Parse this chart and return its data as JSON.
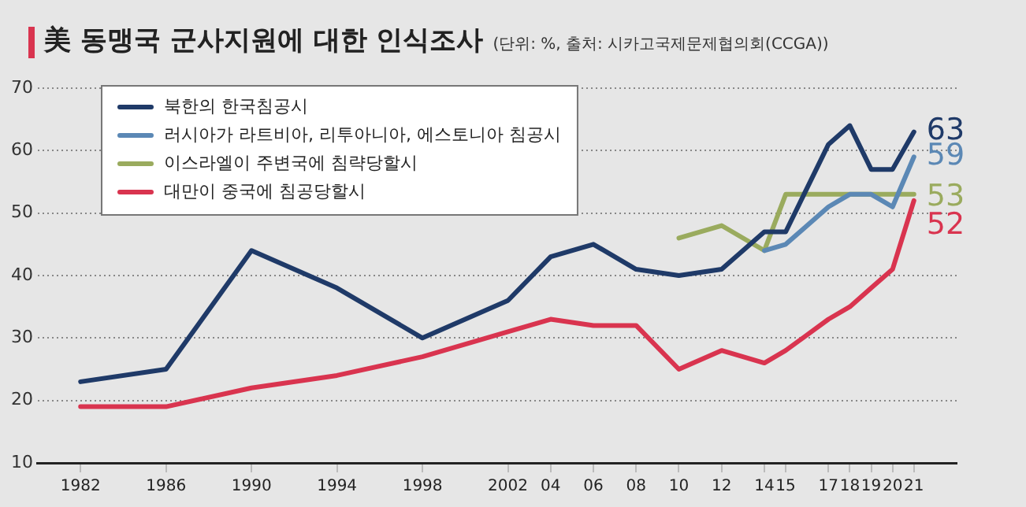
{
  "chart_data": {
    "type": "line",
    "title": "美 동맹국 군사지원에 대한 인식조사",
    "subtitle": "(단위: %, 출처: 시카고국제문제협의회(CCGA))",
    "xlim": [
      1980,
      2023
    ],
    "xticks": [
      {
        "value": 1982,
        "label": "1982"
      },
      {
        "value": 1986,
        "label": "1986"
      },
      {
        "value": 1990,
        "label": "1990"
      },
      {
        "value": 1994,
        "label": "1994"
      },
      {
        "value": 1998,
        "label": "1998"
      },
      {
        "value": 2002,
        "label": "2002"
      },
      {
        "value": 2004,
        "label": "04"
      },
      {
        "value": 2006,
        "label": "06"
      },
      {
        "value": 2008,
        "label": "08"
      },
      {
        "value": 2010,
        "label": "10"
      },
      {
        "value": 2012,
        "label": "12"
      },
      {
        "value": 2014,
        "label": "14"
      },
      {
        "value": 2015,
        "label": "15"
      },
      {
        "value": 2017,
        "label": "17"
      },
      {
        "value": 2018,
        "label": "18"
      },
      {
        "value": 2019,
        "label": "19"
      },
      {
        "value": 2020,
        "label": "20"
      },
      {
        "value": 2021,
        "label": "21"
      }
    ],
    "ylim": [
      10,
      70
    ],
    "yticks": [
      10,
      20,
      30,
      40,
      50,
      60,
      70
    ],
    "grid": "y",
    "legend": "top left",
    "marker": "none",
    "line_style": "solid",
    "series": [
      {
        "name": "북한의 한국침공시",
        "color": "#1f3a68",
        "x": [
          1982,
          1986,
          1990,
          1994,
          1998,
          2002,
          2004,
          2006,
          2008,
          2010,
          2012,
          2014,
          2015,
          2017,
          2018,
          2019,
          2020,
          2021
        ],
        "values": [
          23,
          25,
          44,
          38,
          30,
          36,
          43,
          45,
          41,
          40,
          41,
          47,
          47,
          61,
          64,
          57,
          57,
          63
        ],
        "value_labels": [
          null,
          null,
          null,
          null,
          null,
          null,
          null,
          null,
          null,
          null,
          null,
          null,
          null,
          null,
          null,
          null,
          null,
          "63"
        ]
      },
      {
        "name": "러시아가 라트비아, 리투아니아, 에스토니아 침공시",
        "color": "#5b88b5",
        "x": [
          2014,
          2015,
          2017,
          2018,
          2019,
          2020,
          2021
        ],
        "values": [
          44,
          45,
          51,
          53,
          53,
          51,
          59
        ],
        "value_labels": [
          null,
          null,
          null,
          null,
          null,
          null,
          "59"
        ]
      },
      {
        "name": "이스라엘이 주변국에 침략당할시",
        "color": "#9aab5e",
        "x": [
          2010,
          2012,
          2014,
          2015,
          2017,
          2018,
          2019,
          2020,
          2021
        ],
        "values": [
          46,
          48,
          44,
          53,
          53,
          53,
          53,
          53,
          53
        ],
        "value_labels": [
          null,
          null,
          null,
          null,
          null,
          null,
          null,
          null,
          "53"
        ]
      },
      {
        "name": "대만이 중국에 침공당할시",
        "color": "#d9344f",
        "x": [
          1982,
          1986,
          1990,
          1994,
          1998,
          2002,
          2004,
          2006,
          2008,
          2010,
          2012,
          2014,
          2015,
          2017,
          2018,
          2019,
          2020,
          2021
        ],
        "values": [
          19,
          19,
          22,
          24,
          27,
          31,
          33,
          32,
          32,
          25,
          28,
          26,
          28,
          33,
          35,
          38,
          41,
          52
        ],
        "value_labels": [
          null,
          null,
          null,
          null,
          null,
          null,
          null,
          null,
          null,
          null,
          null,
          null,
          null,
          null,
          null,
          null,
          null,
          "52"
        ]
      }
    ]
  }
}
